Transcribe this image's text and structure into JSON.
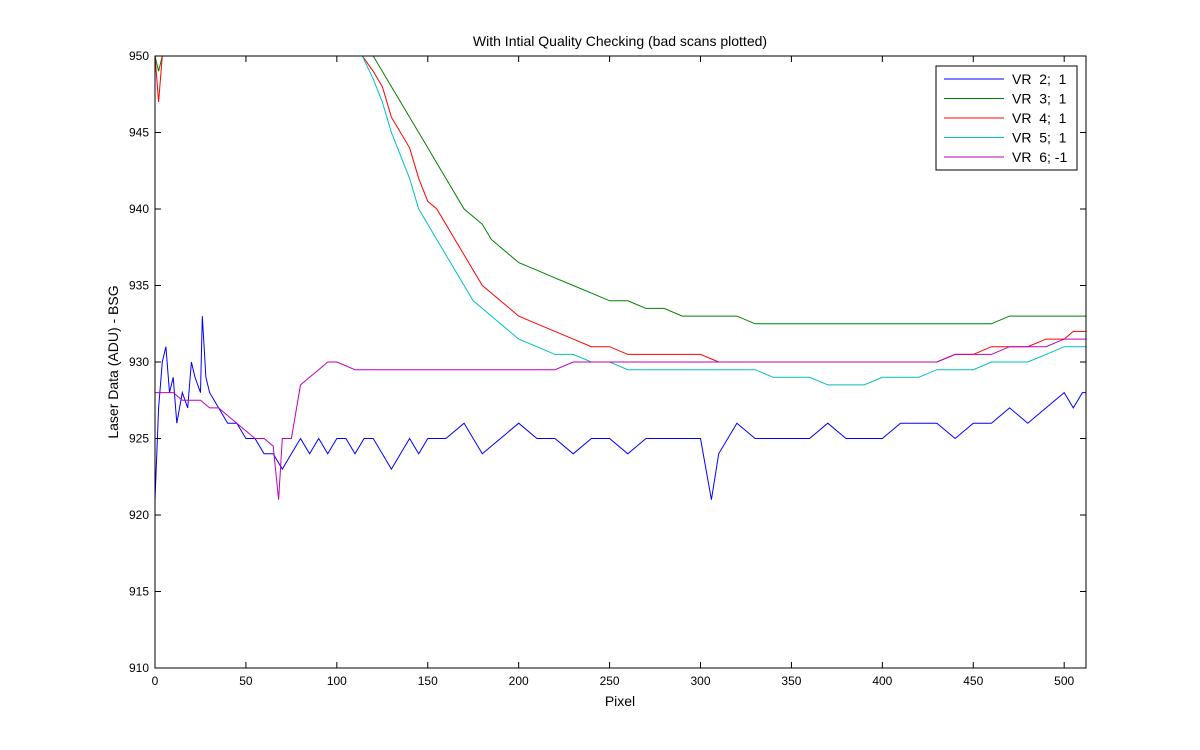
{
  "chart_data": {
    "type": "line",
    "title": "With Intial Quality Checking (bad scans plotted)",
    "xlabel": "Pixel",
    "ylabel": "Laser Data (ADU) - BSG",
    "xlim": [
      0,
      512
    ],
    "ylim": [
      910,
      950
    ],
    "xticks": [
      0,
      50,
      100,
      150,
      200,
      250,
      300,
      350,
      400,
      450,
      500
    ],
    "yticks": [
      910,
      915,
      920,
      925,
      930,
      935,
      940,
      945,
      950
    ],
    "grid": false,
    "legend_location": "top-right",
    "series": [
      {
        "name": "VR  2;  1",
        "color": "#0000ff",
        "x": [
          0,
          1,
          2,
          4,
          6,
          8,
          10,
          12,
          15,
          18,
          20,
          22,
          25,
          26,
          28,
          30,
          35,
          40,
          45,
          50,
          55,
          60,
          65,
          70,
          75,
          80,
          85,
          90,
          95,
          100,
          105,
          110,
          115,
          120,
          125,
          130,
          135,
          140,
          145,
          150,
          160,
          170,
          180,
          190,
          200,
          210,
          220,
          230,
          240,
          250,
          260,
          270,
          280,
          290,
          300,
          306,
          310,
          320,
          330,
          340,
          350,
          360,
          370,
          380,
          390,
          400,
          410,
          420,
          430,
          440,
          450,
          460,
          470,
          480,
          490,
          500,
          505,
          510,
          512
        ],
        "values": [
          921,
          924,
          927,
          930,
          931,
          928,
          929,
          926,
          928,
          927,
          930,
          929,
          928,
          933,
          929,
          928,
          927,
          926,
          926,
          925,
          925,
          924,
          924,
          923,
          924,
          925,
          924,
          925,
          924,
          925,
          925,
          924,
          925,
          925,
          924,
          923,
          924,
          925,
          924,
          925,
          925,
          926,
          924,
          925,
          926,
          925,
          925,
          924,
          925,
          925,
          924,
          925,
          925,
          925,
          925,
          921,
          924,
          926,
          925,
          925,
          925,
          925,
          926,
          925,
          925,
          925,
          926,
          926,
          926,
          925,
          926,
          926,
          927,
          926,
          927,
          928,
          927,
          928,
          928
        ]
      },
      {
        "name": "VR  3;  1",
        "color": "#008000",
        "x": [
          0,
          2,
          4,
          114,
          120,
          125,
          130,
          135,
          140,
          145,
          150,
          155,
          160,
          165,
          170,
          175,
          180,
          185,
          190,
          195,
          200,
          210,
          220,
          230,
          240,
          250,
          260,
          270,
          280,
          290,
          300,
          310,
          320,
          330,
          340,
          350,
          360,
          370,
          380,
          390,
          400,
          410,
          420,
          430,
          440,
          450,
          460,
          470,
          480,
          490,
          500,
          505,
          510,
          512
        ],
        "values": [
          950,
          949,
          950,
          950,
          950,
          949,
          948,
          947,
          946,
          945,
          944,
          943,
          942,
          941,
          940,
          939.5,
          939,
          938,
          937.5,
          937,
          936.5,
          936,
          935.5,
          935,
          934.5,
          934,
          934,
          933.5,
          933.5,
          933,
          933,
          933,
          933,
          932.5,
          932.5,
          932.5,
          932.5,
          932.5,
          932.5,
          932.5,
          932.5,
          932.5,
          932.5,
          932.5,
          932.5,
          932.5,
          932.5,
          933,
          933,
          933,
          933,
          933,
          933,
          933
        ]
      },
      {
        "name": "VR  4;  1",
        "color": "#ff0000",
        "x": [
          0,
          2,
          4,
          114,
          120,
          125,
          130,
          135,
          140,
          145,
          150,
          155,
          160,
          165,
          170,
          175,
          180,
          185,
          190,
          195,
          200,
          210,
          220,
          230,
          240,
          250,
          260,
          270,
          280,
          290,
          300,
          310,
          320,
          330,
          340,
          350,
          360,
          370,
          380,
          390,
          400,
          410,
          420,
          430,
          440,
          450,
          460,
          470,
          480,
          490,
          500,
          505,
          510,
          512
        ],
        "values": [
          950,
          947,
          950,
          950,
          949,
          948,
          946,
          945,
          944,
          942,
          940.5,
          940,
          939,
          938,
          937,
          936,
          935,
          934.5,
          934,
          933.5,
          933,
          932.5,
          932,
          931.5,
          931,
          931,
          930.5,
          930.5,
          930.5,
          930.5,
          930.5,
          930,
          930,
          930,
          930,
          930,
          930,
          930,
          930,
          930,
          930,
          930,
          930,
          930,
          930.5,
          930.5,
          931,
          931,
          931,
          931.5,
          931.5,
          932,
          932,
          932
        ]
      },
      {
        "name": "VR  5;  1",
        "color": "#00bfbf",
        "x": [
          114,
          120,
          125,
          130,
          135,
          140,
          145,
          150,
          155,
          160,
          165,
          170,
          175,
          180,
          185,
          190,
          195,
          200,
          210,
          220,
          230,
          240,
          250,
          260,
          270,
          280,
          290,
          300,
          310,
          320,
          330,
          340,
          350,
          360,
          370,
          380,
          390,
          400,
          410,
          420,
          430,
          440,
          450,
          460,
          470,
          480,
          490,
          500,
          505,
          510,
          512
        ],
        "values": [
          950,
          948.5,
          947,
          945,
          943.5,
          942,
          940,
          939,
          938,
          937,
          936,
          935,
          934,
          933.5,
          933,
          932.5,
          932,
          931.5,
          931,
          930.5,
          930.5,
          930,
          930,
          929.5,
          929.5,
          929.5,
          929.5,
          929.5,
          929.5,
          929.5,
          929.5,
          929,
          929,
          929,
          928.5,
          928.5,
          928.5,
          929,
          929,
          929,
          929.5,
          929.5,
          929.5,
          930,
          930,
          930,
          930.5,
          931,
          931,
          931,
          931
        ]
      },
      {
        "name": "VR  6; -1",
        "color": "#bf00bf",
        "x": [
          0,
          5,
          10,
          15,
          20,
          25,
          30,
          35,
          40,
          45,
          50,
          55,
          60,
          65,
          68,
          70,
          75,
          80,
          85,
          90,
          95,
          100,
          110,
          120,
          130,
          140,
          150,
          160,
          170,
          180,
          190,
          200,
          210,
          220,
          230,
          240,
          250,
          260,
          270,
          280,
          290,
          300,
          310,
          320,
          330,
          340,
          350,
          360,
          370,
          380,
          390,
          400,
          410,
          420,
          430,
          440,
          450,
          460,
          470,
          480,
          490,
          500,
          510,
          512
        ],
        "values": [
          928,
          928,
          928,
          927.5,
          927.5,
          927.5,
          927,
          927,
          926.5,
          926,
          925.5,
          925,
          925,
          924.5,
          921,
          925,
          925,
          928.5,
          929,
          929.5,
          930,
          930,
          929.5,
          929.5,
          929.5,
          929.5,
          929.5,
          929.5,
          929.5,
          929.5,
          929.5,
          929.5,
          929.5,
          929.5,
          930,
          930,
          930,
          930,
          930,
          930,
          930,
          930,
          930,
          930,
          930,
          930,
          930,
          930,
          930,
          930,
          930,
          930,
          930,
          930,
          930,
          930.5,
          930.5,
          930.5,
          931,
          931,
          931,
          931.5,
          931.5,
          931.5
        ]
      }
    ]
  }
}
